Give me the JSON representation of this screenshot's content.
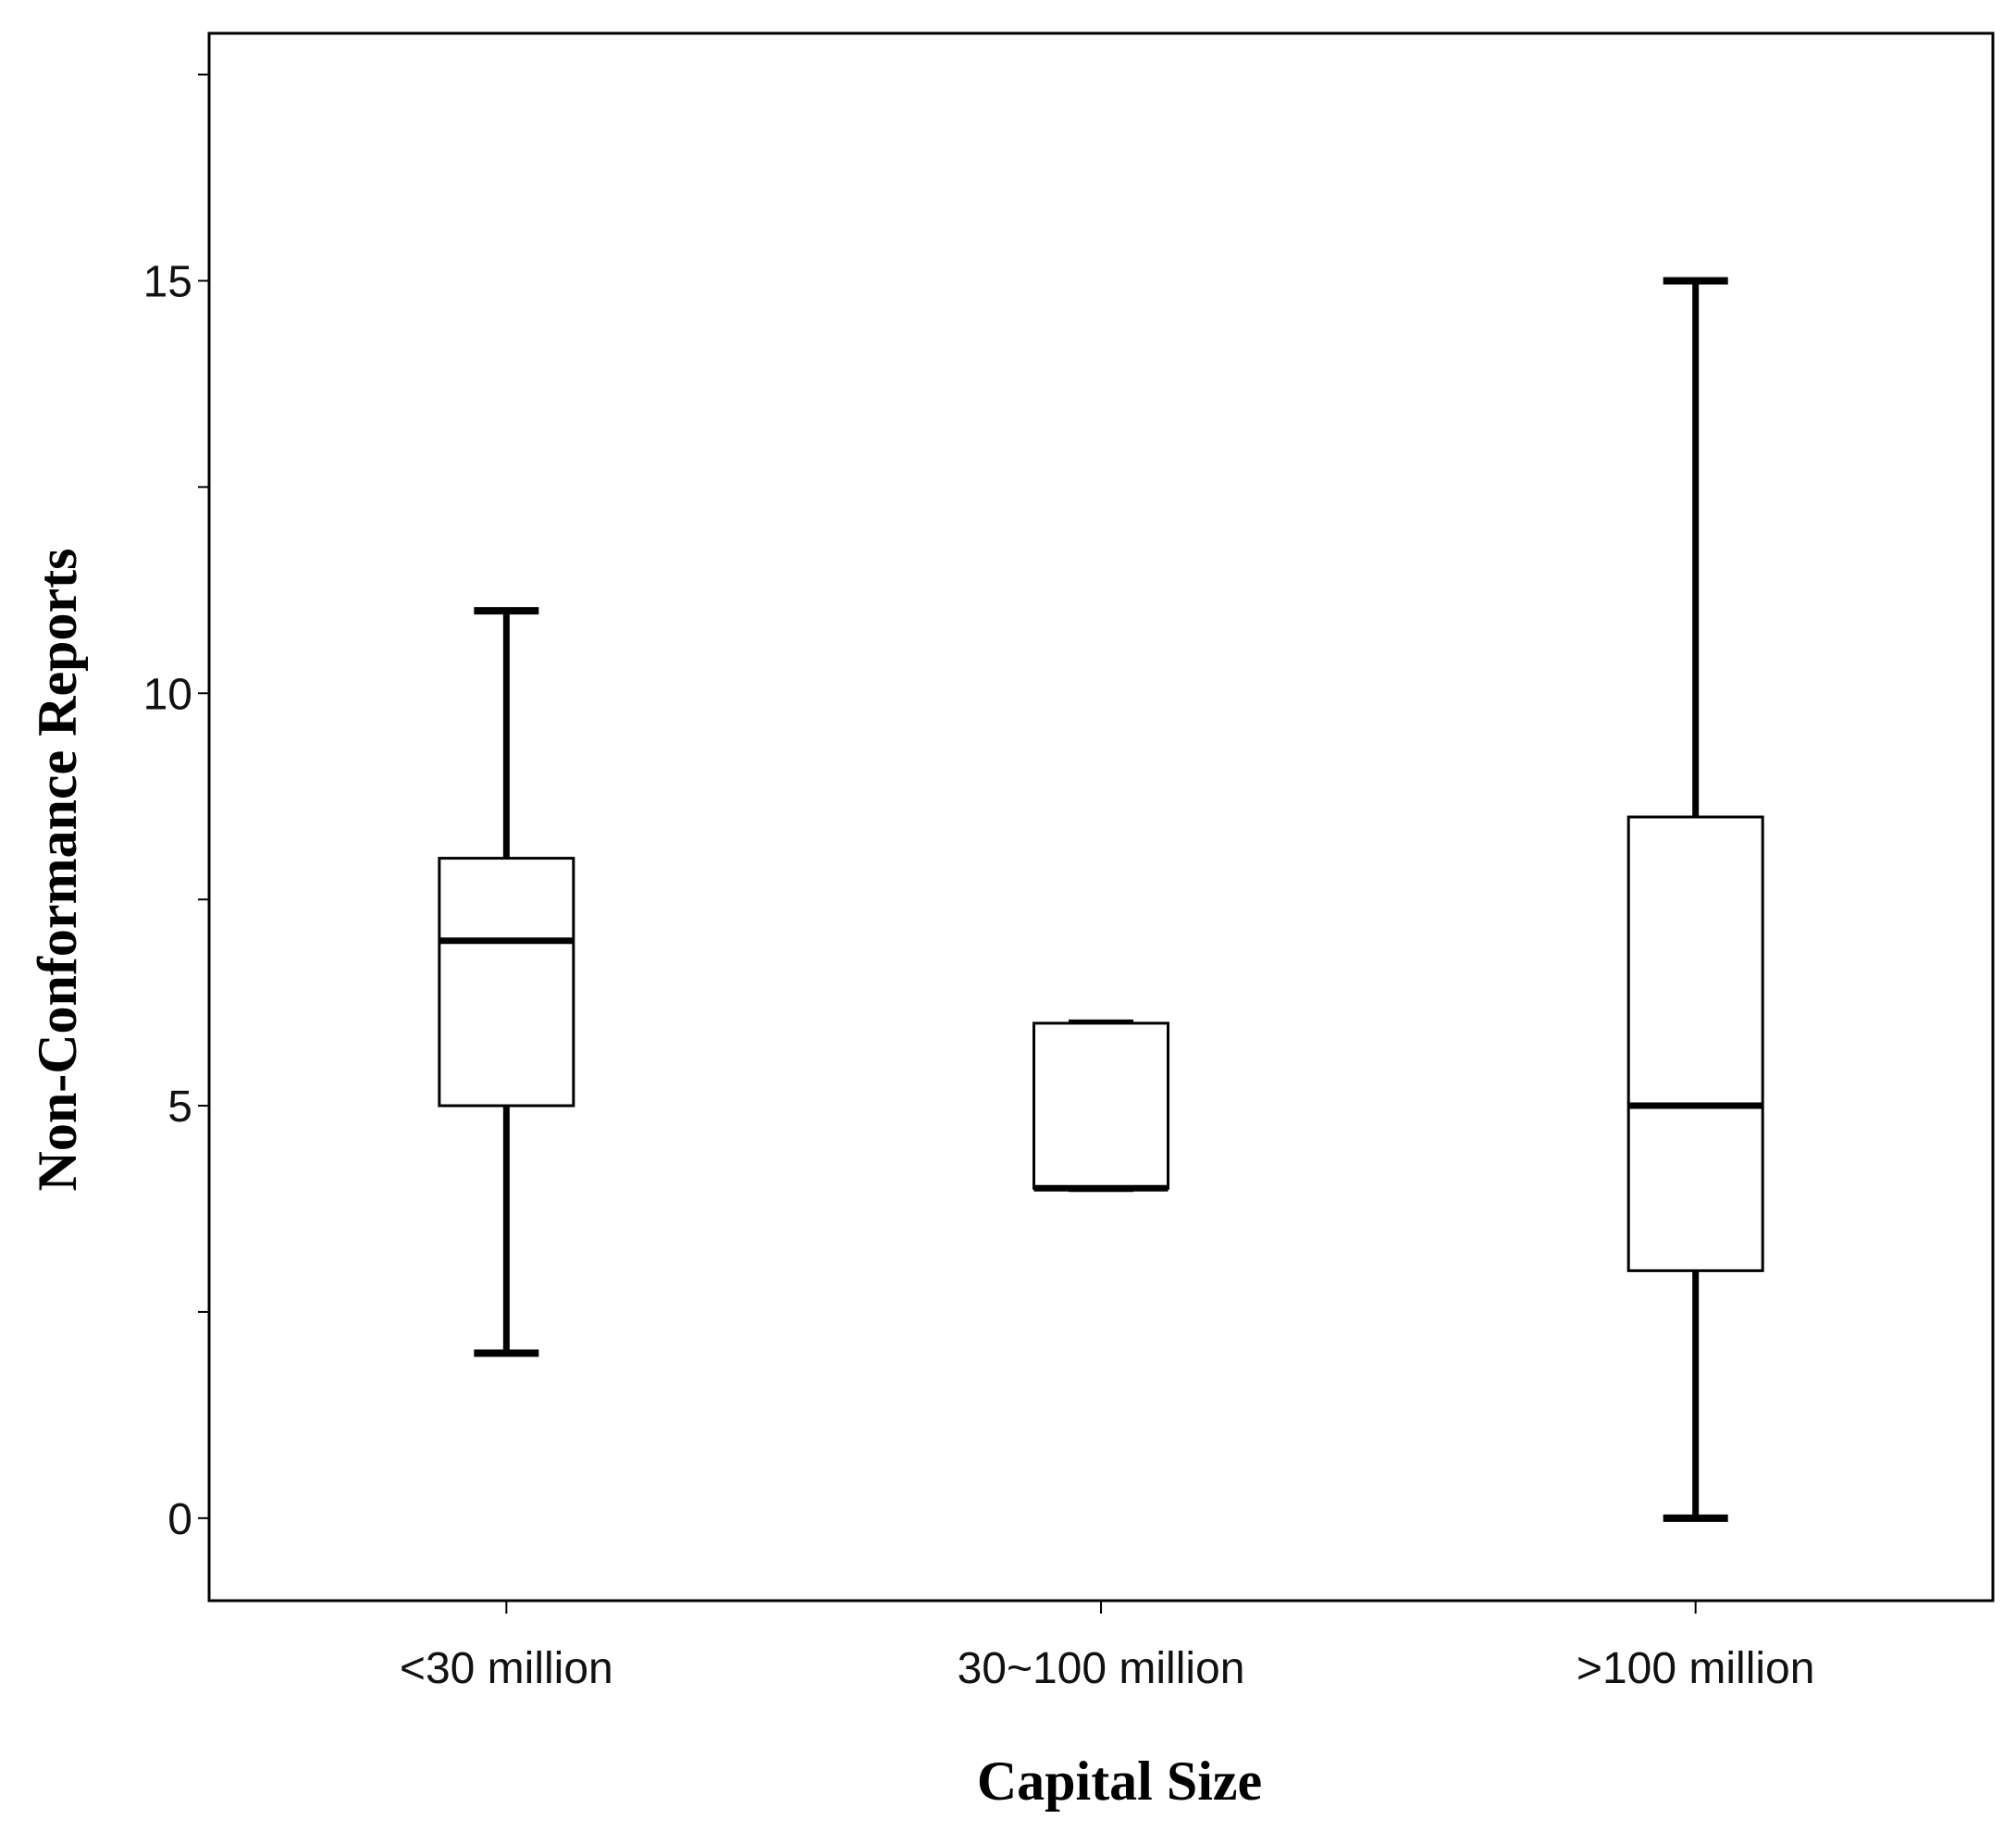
{
  "chart_data": {
    "type": "boxplot",
    "xlabel": "Capital Size",
    "ylabel": "Non-Conformance Reports",
    "ylim": [
      -1,
      18
    ],
    "yticks": [
      0,
      5,
      10,
      15
    ],
    "ytick_labels": [
      "0",
      "5",
      "10",
      "15"
    ],
    "categories": [
      "<30 million",
      "30~100 million",
      ">100 million"
    ],
    "boxes": [
      {
        "category": "<30 million",
        "min": 2,
        "q1": 5,
        "median": 7,
        "q3": 8,
        "max": 11
      },
      {
        "category": "30~100 million",
        "min": 4,
        "q1": 4,
        "median": 4,
        "q3": 6,
        "max": 6
      },
      {
        "category": ">100 million",
        "min": 0,
        "q1": 3,
        "median": 5,
        "q3": 8.5,
        "max": 15
      }
    ],
    "grid": false,
    "legend": "none",
    "colors": {
      "box_fill": "#ffffff",
      "stroke": "#000000"
    }
  }
}
